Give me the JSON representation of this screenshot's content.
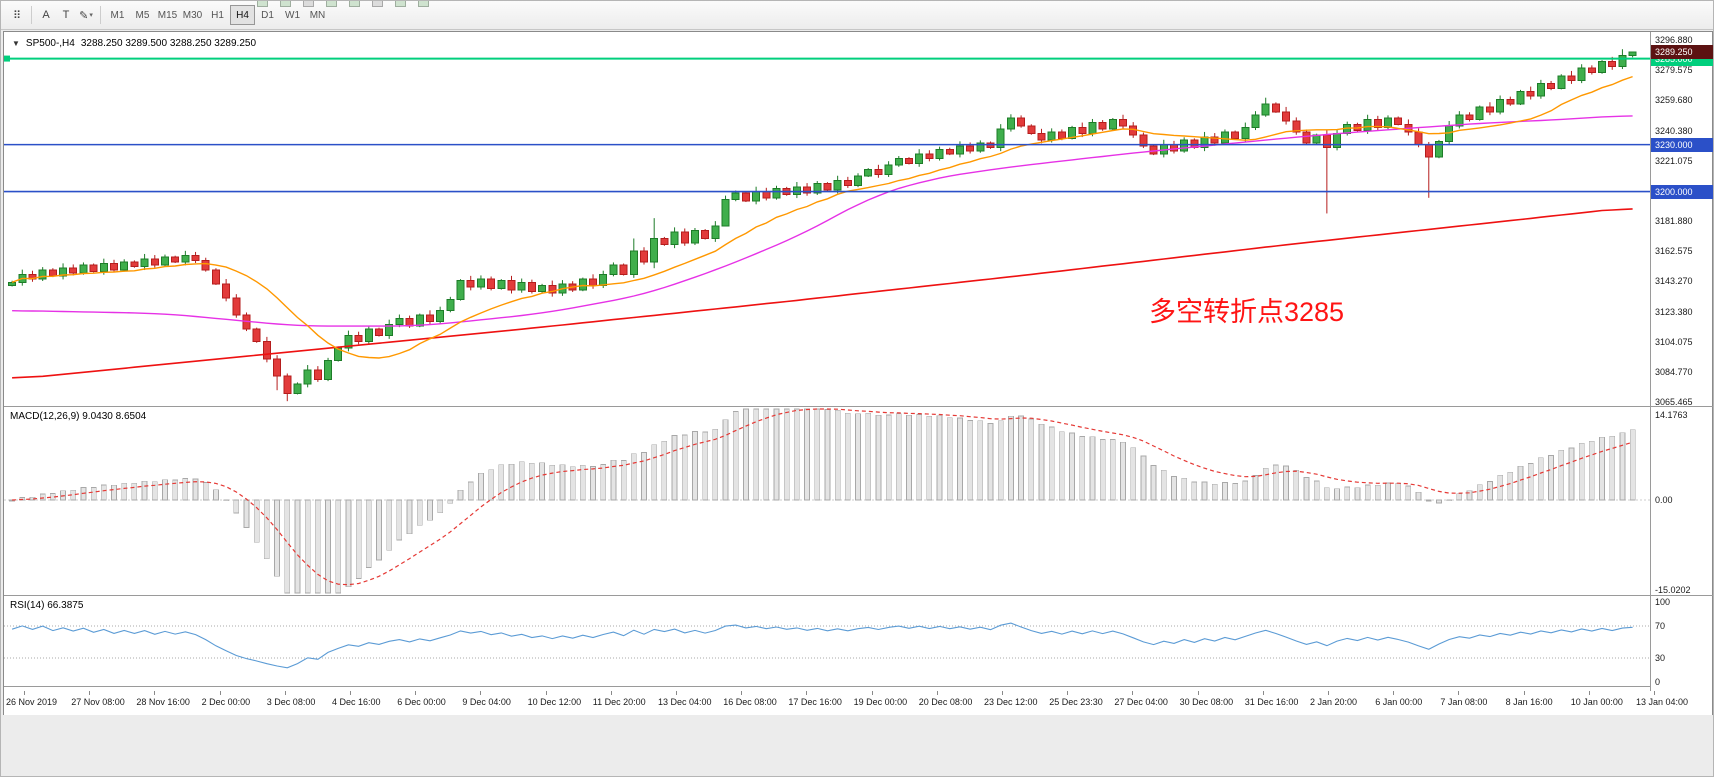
{
  "toolbar": {
    "menu_icon": "⠿",
    "buttons": [
      {
        "id": "text-label-tool",
        "label": "A"
      },
      {
        "id": "text-tool",
        "label": "T"
      },
      {
        "id": "draw-tools",
        "label": "✎",
        "caret": "▾"
      }
    ],
    "timeframes": [
      "M1",
      "M5",
      "M15",
      "M30",
      "H1",
      "H4",
      "D1",
      "W1",
      "MN"
    ],
    "active_timeframe": "H4",
    "clipped_icon_count": 8
  },
  "chart": {
    "header": {
      "collapse_arrow": "▼",
      "symbol": "SP500-,H4",
      "ohlc": "3288.250 3289.500 3288.250 3289.250"
    },
    "annotation": {
      "text": "多空转折点3285",
      "color": "#ff1414"
    },
    "price_axis": {
      "labels": [
        "3296.880",
        "3279.575",
        "3259.680",
        "3240.380",
        "3221.075",
        "",
        "3181.880",
        "3162.575",
        "3143.270",
        "3123.380",
        "3104.075",
        "3084.770",
        "3065.465"
      ],
      "top_value": 3296.88,
      "bottom_value": 3065.465
    },
    "price_lines": [
      {
        "value": 3285.0,
        "label": "3285.000",
        "color": "#00cf7d",
        "width": 2
      },
      {
        "value": 3230.0,
        "label": "3230.000",
        "color": "#2b50c8",
        "width": 1.6
      },
      {
        "value": 3200.0,
        "label": "3200.000",
        "color": "#2b50c8",
        "width": 1.6
      }
    ],
    "current_price": {
      "value": 3289.25,
      "label": "3289.250",
      "color": "#5c1212"
    }
  },
  "macd": {
    "label": "MACD(12,26,9) 9.0430 8.6504",
    "axis_labels": [
      {
        "value": 14.1763,
        "text": "14.1763"
      },
      {
        "value": 0,
        "text": "0.00"
      },
      {
        "value": -15.0202,
        "text": "-15.0202"
      }
    ],
    "max": 14.1763,
    "min": -15.0202,
    "histogram_fill": "#e4e4e4",
    "histogram_stroke": "#a8a8a8",
    "signal_color": "#e53935"
  },
  "rsi": {
    "label": "RSI(14) 66.3875",
    "axis_labels": [
      {
        "value": 100,
        "text": "100"
      },
      {
        "value": 70,
        "text": "70"
      },
      {
        "value": 30,
        "text": "30"
      },
      {
        "value": 0,
        "text": "0"
      }
    ],
    "levels": [
      70,
      30
    ],
    "line_color": "#5b9bd5"
  },
  "time_axis": {
    "labels": [
      "26 Nov 2019",
      "27 Nov 08:00",
      "28 Nov 16:00",
      "2 Dec 00:00",
      "3 Dec 08:00",
      "4 Dec 16:00",
      "6 Dec 00:00",
      "9 Dec 04:00",
      "10 Dec 12:00",
      "11 Dec 20:00",
      "13 Dec 04:00",
      "16 Dec 08:00",
      "17 Dec 16:00",
      "19 Dec 00:00",
      "20 Dec 08:00",
      "23 Dec 12:00",
      "25 Dec 23:30",
      "27 Dec 04:00",
      "30 Dec 08:00",
      "31 Dec 16:00",
      "2 Jan 20:00",
      "6 Jan 00:00",
      "7 Jan 08:00",
      "8 Jan 16:00",
      "10 Jan 00:00",
      "13 Jan 04:00"
    ]
  },
  "chart_data": {
    "type": "candlestick",
    "symbol": "SP500-",
    "timeframe": "H4",
    "title": "SP500- H4 candlestick chart with MACD(12,26,9) and RSI(14)",
    "ylim": [
      3065.465,
      3296.88
    ],
    "up_stroke": "#1d7c28",
    "up_fill": "#3fae4c",
    "down_stroke": "#b51d1d",
    "down_fill": "#e23b3b",
    "first_open": 3140,
    "closes": [
      3142,
      3147,
      3144,
      3150,
      3146,
      3151,
      3148,
      3153,
      3149,
      3154,
      3150,
      3155,
      3152,
      3157,
      3153,
      3158,
      3155,
      3159,
      3156,
      3150,
      3141,
      3132,
      3121,
      3112,
      3104,
      3093,
      3082,
      3071,
      3077,
      3086,
      3080,
      3092,
      3100,
      3108,
      3104,
      3112,
      3108,
      3115,
      3119,
      3114,
      3121,
      3117,
      3124,
      3131,
      3143,
      3139,
      3144,
      3138,
      3143,
      3137,
      3142,
      3136,
      3140,
      3135,
      3141,
      3137,
      3144,
      3140,
      3147,
      3153,
      3147,
      3162,
      3155,
      3170,
      3166,
      3174,
      3167,
      3175,
      3170,
      3178,
      3195,
      3199,
      3194,
      3200,
      3196,
      3202,
      3198,
      3203,
      3199,
      3205,
      3201,
      3207,
      3204,
      3210,
      3214,
      3211,
      3217,
      3221,
      3218,
      3224,
      3221,
      3227,
      3224,
      3229,
      3226,
      3231,
      3228,
      3240,
      3247,
      3242,
      3237,
      3233,
      3238,
      3234,
      3241,
      3237,
      3244,
      3240,
      3246,
      3242,
      3236,
      3229,
      3224,
      3230,
      3226,
      3233,
      3228,
      3235,
      3231,
      3238,
      3234,
      3241,
      3249,
      3256,
      3251,
      3245,
      3238,
      3231,
      3236,
      3228,
      3237,
      3243,
      3239,
      3246,
      3241,
      3247,
      3243,
      3238,
      3230,
      3222,
      3232,
      3242,
      3249,
      3246,
      3254,
      3251,
      3259,
      3256,
      3264,
      3261,
      3269,
      3266,
      3274,
      3271,
      3279,
      3276,
      3283,
      3280,
      3287,
      3289.25
    ],
    "wick_overrides": {
      "26": {
        "low": 3073
      },
      "27": {
        "low": 3066
      },
      "61": {
        "high": 3170
      },
      "63": {
        "high": 3183,
        "low": 3151
      },
      "70": {
        "low": 3180
      },
      "123": {
        "high": 3260
      },
      "129": {
        "low": 3186
      },
      "139": {
        "low": 3196
      },
      "158": {
        "high": 3291
      },
      "159": {
        "high": 3289.5
      }
    },
    "ma_orange": {
      "color": "#ff9800",
      "period": 13
    },
    "ma_magenta": {
      "color": "#e632e6",
      "anchors": [
        [
          0,
          3124
        ],
        [
          15,
          3122
        ],
        [
          28,
          3114
        ],
        [
          40,
          3114
        ],
        [
          52,
          3122
        ],
        [
          62,
          3134
        ],
        [
          70,
          3152
        ],
        [
          78,
          3174
        ],
        [
          84,
          3196
        ],
        [
          90,
          3208
        ],
        [
          97,
          3215
        ],
        [
          105,
          3221
        ],
        [
          112,
          3226
        ],
        [
          120,
          3231
        ],
        [
          128,
          3236
        ],
        [
          136,
          3240
        ],
        [
          145,
          3244
        ],
        [
          152,
          3246
        ],
        [
          159,
          3249
        ]
      ]
    },
    "ma_red": {
      "color": "#ee1111",
      "anchors": [
        [
          0,
          3080
        ],
        [
          25,
          3096
        ],
        [
          50,
          3112
        ],
        [
          75,
          3129
        ],
        [
          100,
          3147
        ],
        [
          125,
          3166
        ],
        [
          145,
          3180
        ],
        [
          159,
          3190
        ]
      ]
    }
  }
}
